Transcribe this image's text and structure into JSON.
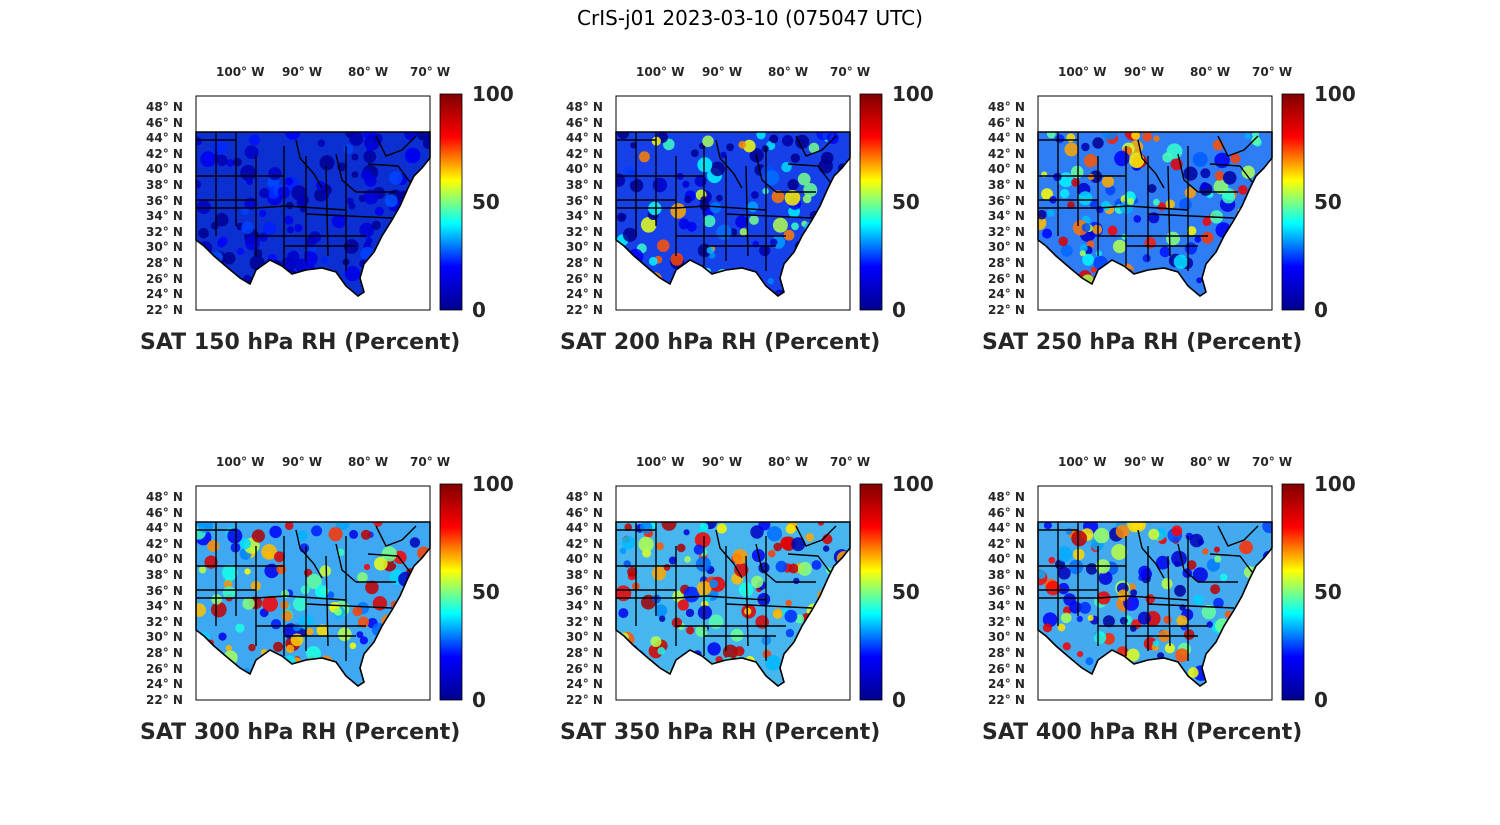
{
  "title": "CrIS-j01 2023-03-10 (075047 UTC)",
  "lon_ticks": [
    "100° W",
    "90° W",
    "80° W",
    "70° W"
  ],
  "lat_ticks": [
    "48° N",
    "46° N",
    "44° N",
    "42° N",
    "40° N",
    "38° N",
    "36° N",
    "34° N",
    "32° N",
    "30° N",
    "28° N",
    "26° N",
    "24° N",
    "22° N"
  ],
  "colorbar": {
    "min_label": "0",
    "mid_label": "50",
    "max_label": "100",
    "colormap": "jet",
    "colors": [
      "#00008f",
      "#0000ff",
      "#00ffff",
      "#ffff00",
      "#ff0000",
      "#800000"
    ]
  },
  "panels": [
    {
      "title": "SAT 150 hPa RH (Percent)",
      "level": 150,
      "mean_rh": 10,
      "field_color": "#0b2fd0"
    },
    {
      "title": "SAT 200 hPa RH (Percent)",
      "level": 200,
      "mean_rh": 25,
      "field_color": "#1640e8"
    },
    {
      "title": "SAT 250 hPa RH (Percent)",
      "level": 250,
      "mean_rh": 40,
      "field_color": "#2f7df5"
    },
    {
      "title": "SAT 300 hPa RH (Percent)",
      "level": 300,
      "mean_rh": 45,
      "field_color": "#3fa8f2"
    },
    {
      "title": "SAT 350 hPa RH (Percent)",
      "level": 350,
      "mean_rh": 45,
      "field_color": "#47b6ee"
    },
    {
      "title": "SAT 400 hPa RH (Percent)",
      "level": 400,
      "mean_rh": 42,
      "field_color": "#43aaf0"
    }
  ]
}
